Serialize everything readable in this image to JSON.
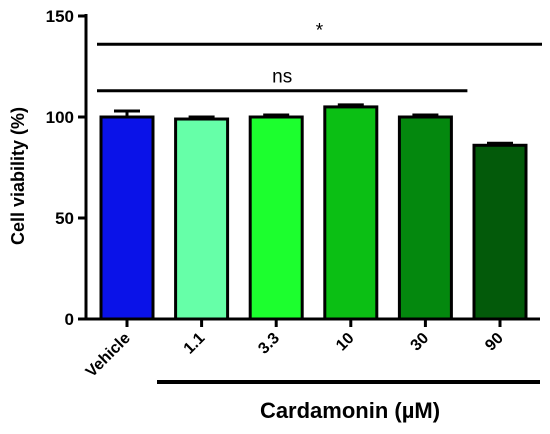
{
  "chart_data": {
    "type": "bar",
    "ylabel": "Cell viability (%)",
    "xgroup_label": "Cardamonin (µM)",
    "ylim": [
      0,
      150
    ],
    "yticks": [
      "0",
      "50",
      "100",
      "150"
    ],
    "categories": [
      "Vehicle",
      "1.1",
      "3.3",
      "10",
      "30",
      "90"
    ],
    "values": [
      100,
      99,
      100,
      105,
      100,
      86
    ],
    "errors": [
      3,
      1,
      1,
      1,
      1,
      1
    ],
    "colors": [
      "#0a12e8",
      "#66ffa8",
      "#1cff2e",
      "#0bbf14",
      "#04880e",
      "#035a0a"
    ],
    "annotations": [
      {
        "text": "*",
        "y": 136,
        "from": "Vehicle",
        "to": "90"
      },
      {
        "text": "ns",
        "y": 113,
        "from": "Vehicle",
        "to": "30"
      }
    ]
  }
}
